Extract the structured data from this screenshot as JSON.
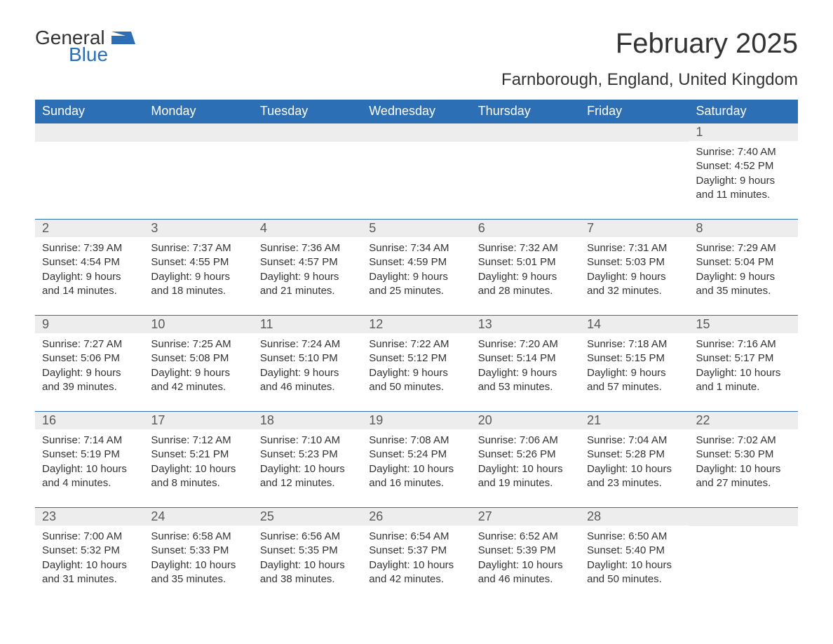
{
  "brand": {
    "general": "General",
    "blue": "Blue",
    "logo_color": "#2d6fb5"
  },
  "title": "February 2025",
  "location": "Farnborough, England, United Kingdom",
  "colors": {
    "header_bg": "#2d6fb5",
    "header_text": "#ffffff",
    "daynum_bg": "#ededed",
    "daynum_text": "#595959",
    "body_text": "#333333",
    "row_border": "#2d6fb5"
  },
  "day_headers": [
    "Sunday",
    "Monday",
    "Tuesday",
    "Wednesday",
    "Thursday",
    "Friday",
    "Saturday"
  ],
  "weeks": [
    [
      null,
      null,
      null,
      null,
      null,
      null,
      {
        "n": "1",
        "sunrise": "Sunrise: 7:40 AM",
        "sunset": "Sunset: 4:52 PM",
        "day1": "Daylight: 9 hours",
        "day2": "and 11 minutes."
      }
    ],
    [
      {
        "n": "2",
        "sunrise": "Sunrise: 7:39 AM",
        "sunset": "Sunset: 4:54 PM",
        "day1": "Daylight: 9 hours",
        "day2": "and 14 minutes."
      },
      {
        "n": "3",
        "sunrise": "Sunrise: 7:37 AM",
        "sunset": "Sunset: 4:55 PM",
        "day1": "Daylight: 9 hours",
        "day2": "and 18 minutes."
      },
      {
        "n": "4",
        "sunrise": "Sunrise: 7:36 AM",
        "sunset": "Sunset: 4:57 PM",
        "day1": "Daylight: 9 hours",
        "day2": "and 21 minutes."
      },
      {
        "n": "5",
        "sunrise": "Sunrise: 7:34 AM",
        "sunset": "Sunset: 4:59 PM",
        "day1": "Daylight: 9 hours",
        "day2": "and 25 minutes."
      },
      {
        "n": "6",
        "sunrise": "Sunrise: 7:32 AM",
        "sunset": "Sunset: 5:01 PM",
        "day1": "Daylight: 9 hours",
        "day2": "and 28 minutes."
      },
      {
        "n": "7",
        "sunrise": "Sunrise: 7:31 AM",
        "sunset": "Sunset: 5:03 PM",
        "day1": "Daylight: 9 hours",
        "day2": "and 32 minutes."
      },
      {
        "n": "8",
        "sunrise": "Sunrise: 7:29 AM",
        "sunset": "Sunset: 5:04 PM",
        "day1": "Daylight: 9 hours",
        "day2": "and 35 minutes."
      }
    ],
    [
      {
        "n": "9",
        "sunrise": "Sunrise: 7:27 AM",
        "sunset": "Sunset: 5:06 PM",
        "day1": "Daylight: 9 hours",
        "day2": "and 39 minutes."
      },
      {
        "n": "10",
        "sunrise": "Sunrise: 7:25 AM",
        "sunset": "Sunset: 5:08 PM",
        "day1": "Daylight: 9 hours",
        "day2": "and 42 minutes."
      },
      {
        "n": "11",
        "sunrise": "Sunrise: 7:24 AM",
        "sunset": "Sunset: 5:10 PM",
        "day1": "Daylight: 9 hours",
        "day2": "and 46 minutes."
      },
      {
        "n": "12",
        "sunrise": "Sunrise: 7:22 AM",
        "sunset": "Sunset: 5:12 PM",
        "day1": "Daylight: 9 hours",
        "day2": "and 50 minutes."
      },
      {
        "n": "13",
        "sunrise": "Sunrise: 7:20 AM",
        "sunset": "Sunset: 5:14 PM",
        "day1": "Daylight: 9 hours",
        "day2": "and 53 minutes."
      },
      {
        "n": "14",
        "sunrise": "Sunrise: 7:18 AM",
        "sunset": "Sunset: 5:15 PM",
        "day1": "Daylight: 9 hours",
        "day2": "and 57 minutes."
      },
      {
        "n": "15",
        "sunrise": "Sunrise: 7:16 AM",
        "sunset": "Sunset: 5:17 PM",
        "day1": "Daylight: 10 hours",
        "day2": "and 1 minute."
      }
    ],
    [
      {
        "n": "16",
        "sunrise": "Sunrise: 7:14 AM",
        "sunset": "Sunset: 5:19 PM",
        "day1": "Daylight: 10 hours",
        "day2": "and 4 minutes."
      },
      {
        "n": "17",
        "sunrise": "Sunrise: 7:12 AM",
        "sunset": "Sunset: 5:21 PM",
        "day1": "Daylight: 10 hours",
        "day2": "and 8 minutes."
      },
      {
        "n": "18",
        "sunrise": "Sunrise: 7:10 AM",
        "sunset": "Sunset: 5:23 PM",
        "day1": "Daylight: 10 hours",
        "day2": "and 12 minutes."
      },
      {
        "n": "19",
        "sunrise": "Sunrise: 7:08 AM",
        "sunset": "Sunset: 5:24 PM",
        "day1": "Daylight: 10 hours",
        "day2": "and 16 minutes."
      },
      {
        "n": "20",
        "sunrise": "Sunrise: 7:06 AM",
        "sunset": "Sunset: 5:26 PM",
        "day1": "Daylight: 10 hours",
        "day2": "and 19 minutes."
      },
      {
        "n": "21",
        "sunrise": "Sunrise: 7:04 AM",
        "sunset": "Sunset: 5:28 PM",
        "day1": "Daylight: 10 hours",
        "day2": "and 23 minutes."
      },
      {
        "n": "22",
        "sunrise": "Sunrise: 7:02 AM",
        "sunset": "Sunset: 5:30 PM",
        "day1": "Daylight: 10 hours",
        "day2": "and 27 minutes."
      }
    ],
    [
      {
        "n": "23",
        "sunrise": "Sunrise: 7:00 AM",
        "sunset": "Sunset: 5:32 PM",
        "day1": "Daylight: 10 hours",
        "day2": "and 31 minutes."
      },
      {
        "n": "24",
        "sunrise": "Sunrise: 6:58 AM",
        "sunset": "Sunset: 5:33 PM",
        "day1": "Daylight: 10 hours",
        "day2": "and 35 minutes."
      },
      {
        "n": "25",
        "sunrise": "Sunrise: 6:56 AM",
        "sunset": "Sunset: 5:35 PM",
        "day1": "Daylight: 10 hours",
        "day2": "and 38 minutes."
      },
      {
        "n": "26",
        "sunrise": "Sunrise: 6:54 AM",
        "sunset": "Sunset: 5:37 PM",
        "day1": "Daylight: 10 hours",
        "day2": "and 42 minutes."
      },
      {
        "n": "27",
        "sunrise": "Sunrise: 6:52 AM",
        "sunset": "Sunset: 5:39 PM",
        "day1": "Daylight: 10 hours",
        "day2": "and 46 minutes."
      },
      {
        "n": "28",
        "sunrise": "Sunrise: 6:50 AM",
        "sunset": "Sunset: 5:40 PM",
        "day1": "Daylight: 10 hours",
        "day2": "and 50 minutes."
      },
      null
    ]
  ]
}
